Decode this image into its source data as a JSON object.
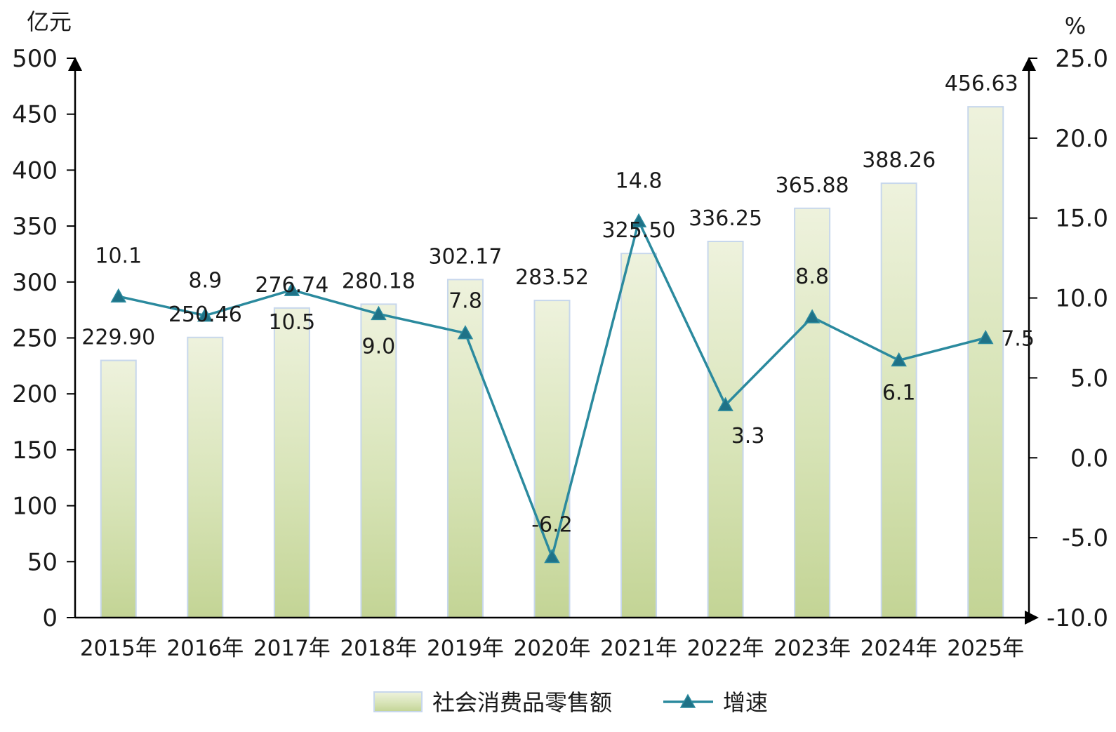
{
  "chart_data": {
    "type": "bar",
    "categories": [
      "2015年",
      "2016年",
      "2017年",
      "2018年",
      "2019年",
      "2020年",
      "2021年",
      "2022年",
      "2023年",
      "2024年",
      "2025年"
    ],
    "series": [
      {
        "name": "社会消费品零售额",
        "type": "bar",
        "axis": "left",
        "values": [
          229.9,
          250.46,
          276.74,
          280.18,
          302.17,
          283.52,
          325.5,
          336.25,
          365.88,
          388.26,
          456.63
        ],
        "labels": [
          "229.90",
          "250.46",
          "276.74",
          "280.18",
          "302.17",
          "283.52",
          "325.50",
          "336.25",
          "365.88",
          "388.26",
          "456.63"
        ]
      },
      {
        "name": "增速",
        "type": "line",
        "axis": "right",
        "values": [
          10.1,
          8.9,
          10.5,
          9.0,
          7.8,
          -6.2,
          14.8,
          3.3,
          8.8,
          6.1,
          7.5
        ],
        "labels": [
          "10.1",
          "8.9",
          "10.5",
          "9.0",
          "7.8",
          "-6.2",
          "14.8",
          "3.3",
          "8.8",
          "6.1",
          "7.5"
        ]
      }
    ],
    "y_left": {
      "unit": "亿元",
      "ylim": [
        0,
        500
      ],
      "ticks": [
        0,
        50,
        100,
        150,
        200,
        250,
        300,
        350,
        400,
        450,
        500
      ],
      "tick_labels": [
        "0",
        "50",
        "100",
        "150",
        "200",
        "250",
        "300",
        "350",
        "400",
        "450",
        "500"
      ]
    },
    "y_right": {
      "unit": "%",
      "ylim": [
        -10,
        25
      ],
      "ticks": [
        -10,
        -5,
        0,
        5,
        10,
        15,
        20,
        25
      ],
      "tick_labels": [
        "-10.0",
        "-5.0",
        "0.0",
        "5.0",
        "10.0",
        "15.0",
        "20.0",
        "25.0"
      ]
    },
    "grid": false,
    "legend": "bottom-center",
    "colors": {
      "bar_top": "#eef2dd",
      "bar_bottom": "#c3d495",
      "bar_border": "#c7d7ec",
      "line": "#2b8a9e",
      "marker": "#1f7287",
      "axis": "#000000"
    }
  }
}
